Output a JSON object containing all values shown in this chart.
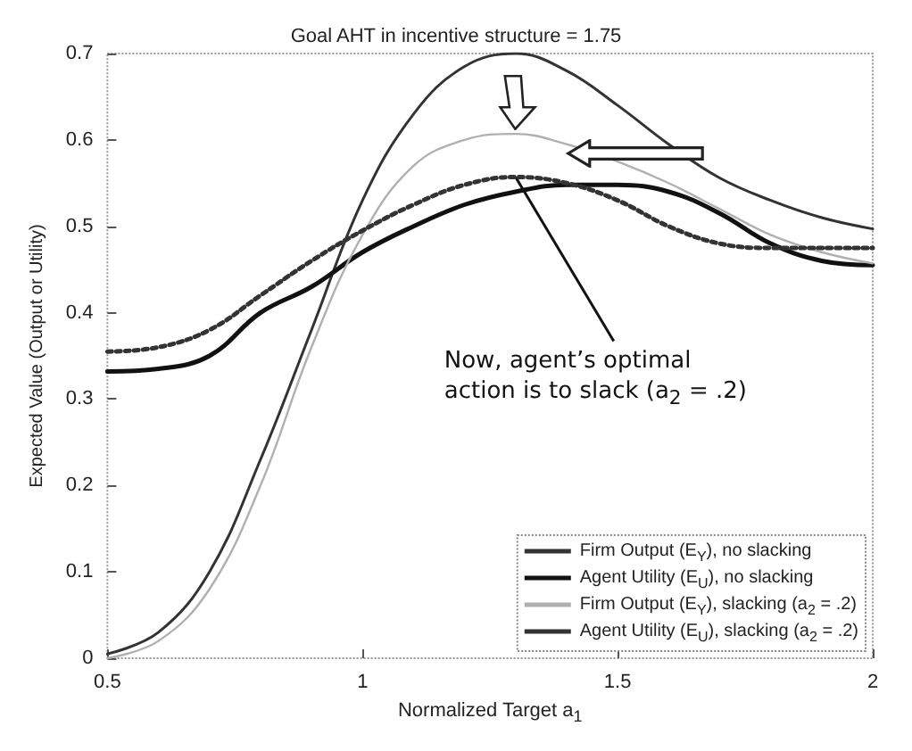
{
  "chart_data": {
    "type": "line",
    "title": "Goal AHT in incentive structure = 1.75",
    "xlabel": "Normalized Target a$_{1}$",
    "ylabel": "Expected Value (Output or Utility)",
    "x": [
      0.5,
      0.6,
      0.7,
      0.8,
      0.9,
      1.0,
      1.1,
      1.2,
      1.3,
      1.4,
      1.5,
      1.6,
      1.7,
      1.8,
      1.9,
      2.0
    ],
    "series": [
      {
        "name": "Firm Output (E$_{Y}$), no slacking",
        "color": "#333333",
        "line_style": "solid",
        "values": [
          0.005,
          0.03,
          0.1,
          0.23,
          0.38,
          0.53,
          0.63,
          0.685,
          0.7,
          0.68,
          0.64,
          0.595,
          0.556,
          0.53,
          0.51,
          0.497
        ]
      },
      {
        "name": "Agent Utility (E$_{U}$), no slacking",
        "color": "#111111",
        "line_style": "solid",
        "values": [
          0.332,
          0.335,
          0.35,
          0.4,
          0.43,
          0.47,
          0.5,
          0.525,
          0.54,
          0.548,
          0.548,
          0.54,
          0.515,
          0.48,
          0.46,
          0.455
        ]
      },
      {
        "name": "Firm Output (E$_{Y}$), slacking (a$_{2}$ = .2)",
        "color": "#b0b0b0",
        "line_style": "solid",
        "values": [
          0.0,
          0.02,
          0.08,
          0.2,
          0.36,
          0.49,
          0.57,
          0.6,
          0.607,
          0.595,
          0.575,
          0.55,
          0.52,
          0.49,
          0.47,
          0.457
        ]
      },
      {
        "name": "Agent Utility (E$_{U}$), slacking (a$_{2}$ = .2)",
        "color": "#333333",
        "line_style": "dotted",
        "values": [
          0.355,
          0.36,
          0.38,
          0.42,
          0.46,
          0.495,
          0.525,
          0.548,
          0.557,
          0.55,
          0.53,
          0.5,
          0.48,
          0.475,
          0.475,
          0.475
        ]
      }
    ],
    "xlim": [
      0.5,
      2
    ],
    "xticks": [
      0.5,
      1,
      1.5,
      2
    ],
    "ylim": [
      0,
      0.7
    ],
    "yticks": [
      0,
      0.1,
      0.2,
      0.3,
      0.4,
      0.5,
      0.6,
      0.7
    ],
    "grid": false,
    "legend": "bottom right",
    "marker": "none",
    "annotations": [
      {
        "text": "Now, agent’s optimal action is to slack (a$_{2}$ = .2)",
        "x": 1.3,
        "y": 0.557
      }
    ]
  }
}
